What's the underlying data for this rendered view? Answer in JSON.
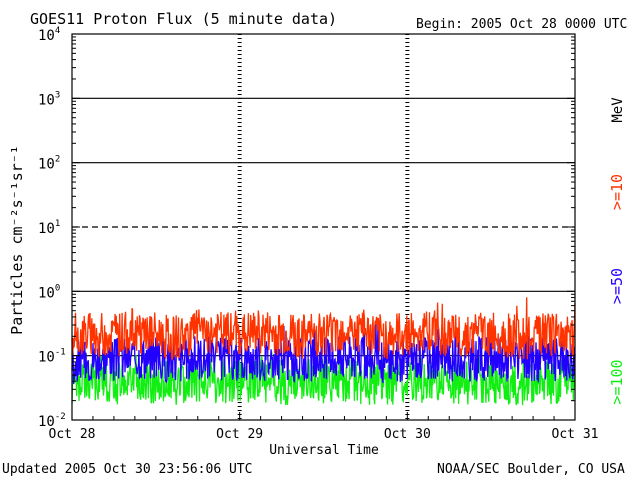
{
  "header": {
    "title": "GOES11 Proton Flux (5 minute data)",
    "begin": "Begin: 2005 Oct 28 0000 UTC"
  },
  "footer": {
    "updated": "Updated 2005 Oct 30 23:56:06 UTC",
    "credit": "NOAA/SEC Boulder, CO USA"
  },
  "chart_data": {
    "type": "line",
    "title": "GOES11 Proton Flux (5 minute data)",
    "xlabel": "Universal Time",
    "ylabel": "Particles cm⁻²s⁻¹sr⁻¹",
    "y_scale": "log",
    "ylim": [
      0.01,
      10000
    ],
    "xlim": [
      "2005-10-28 00:00",
      "2005-10-31 00:00"
    ],
    "x_ticks": [
      "Oct 28",
      "Oct 29",
      "Oct 30",
      "Oct 31"
    ],
    "y_ticks": [
      {
        "base": "10",
        "exp": "-2"
      },
      {
        "base": "10",
        "exp": "-1"
      },
      {
        "base": "10",
        "exp": "0"
      },
      {
        "base": "10",
        "exp": "1"
      },
      {
        "base": "10",
        "exp": "2"
      },
      {
        "base": "10",
        "exp": "3"
      },
      {
        "base": "10",
        "exp": "4"
      }
    ],
    "grid": true,
    "dashed_gridline_at": 10,
    "legend": [
      {
        "label": ">=10",
        "unit": "MeV",
        "color": "#ff3300"
      },
      {
        "label": ">=50",
        "color": "#2200ff"
      },
      {
        "label": ">=100",
        "color": "#11ee11"
      }
    ],
    "series": [
      {
        "name": ">=10 MeV",
        "color": "#ff3300",
        "x_hours": [
          0,
          3,
          6,
          9,
          12,
          15,
          18,
          21,
          24,
          27,
          30,
          33,
          36,
          39,
          42,
          45,
          48,
          51,
          54,
          57,
          60,
          63,
          66,
          69,
          72
        ],
        "values": [
          0.18,
          0.22,
          0.2,
          0.25,
          0.21,
          0.19,
          0.24,
          0.22,
          0.2,
          0.23,
          0.21,
          0.2,
          0.22,
          0.25,
          0.21,
          0.19,
          0.22,
          0.24,
          0.2,
          0.21,
          0.23,
          0.2,
          0.19,
          0.22,
          0.2
        ]
      },
      {
        "name": ">=50",
        "color": "#2200ff",
        "x_hours": [
          0,
          3,
          6,
          9,
          12,
          15,
          18,
          21,
          24,
          27,
          30,
          33,
          36,
          39,
          42,
          45,
          48,
          51,
          54,
          57,
          60,
          63,
          66,
          69,
          72
        ],
        "values": [
          0.08,
          0.09,
          0.085,
          0.1,
          0.09,
          0.08,
          0.095,
          0.09,
          0.085,
          0.09,
          0.088,
          0.082,
          0.09,
          0.1,
          0.088,
          0.08,
          0.09,
          0.095,
          0.085,
          0.088,
          0.092,
          0.086,
          0.082,
          0.09,
          0.085
        ]
      },
      {
        "name": ">=100",
        "color": "#11ee11",
        "x_hours": [
          0,
          3,
          6,
          9,
          12,
          15,
          18,
          21,
          24,
          27,
          30,
          33,
          36,
          39,
          42,
          45,
          48,
          51,
          54,
          57,
          60,
          63,
          66,
          69,
          72
        ],
        "values": [
          0.035,
          0.04,
          0.038,
          0.042,
          0.039,
          0.036,
          0.041,
          0.04,
          0.037,
          0.04,
          0.038,
          0.036,
          0.04,
          0.043,
          0.038,
          0.035,
          0.04,
          0.042,
          0.037,
          0.038,
          0.041,
          0.037,
          0.035,
          0.04,
          0.037
        ]
      }
    ]
  }
}
